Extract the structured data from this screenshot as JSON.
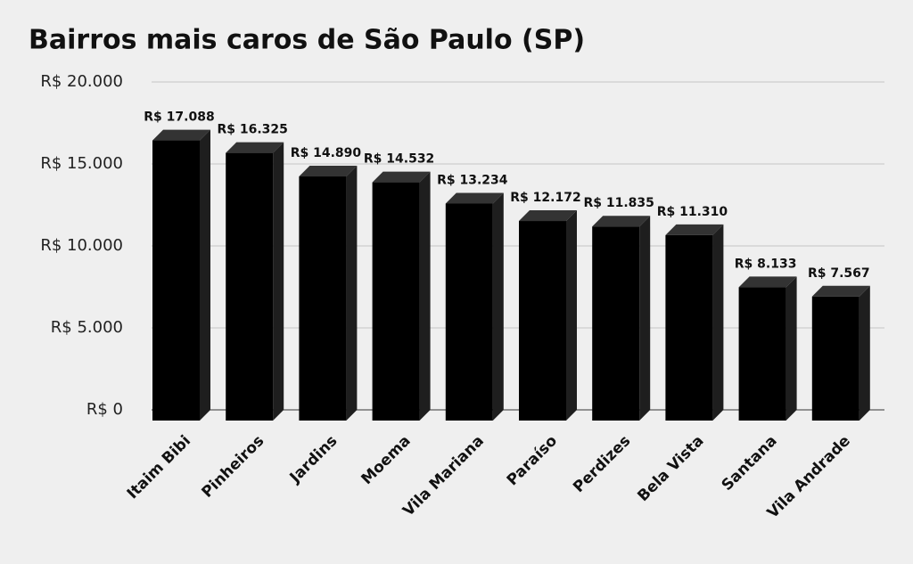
{
  "chart_data": {
    "type": "bar3d",
    "title": "Bairros mais caros de São Paulo (SP)",
    "categories": [
      "Itaim Bibi",
      "Pinheiros",
      "Jardins",
      "Moema",
      "Vila Mariana",
      "Paraíso",
      "Perdizes",
      "Bela Vista",
      "Santana",
      "Vila Andrade"
    ],
    "values": [
      17088,
      16325,
      14890,
      14532,
      13234,
      12172,
      11835,
      11310,
      8133,
      7567
    ],
    "value_labels": [
      "R$ 17.088",
      "R$ 16.325",
      "R$ 14.890",
      "R$ 14.532",
      "R$ 13.234",
      "R$ 12.172",
      "R$ 11.835",
      "R$ 11.310",
      "R$ 8.133",
      "R$ 7.567"
    ],
    "color": "#000000",
    "ylim": [
      0,
      20000
    ],
    "yticks": [
      {
        "value": 0,
        "label": "R$ 0"
      },
      {
        "value": 5000,
        "label": "R$ 5.000"
      },
      {
        "value": 10000,
        "label": "R$ 10.000"
      },
      {
        "value": 15000,
        "label": "R$ 15.000"
      },
      {
        "value": 20000,
        "label": "R$ 20.000"
      }
    ],
    "grid": true
  }
}
